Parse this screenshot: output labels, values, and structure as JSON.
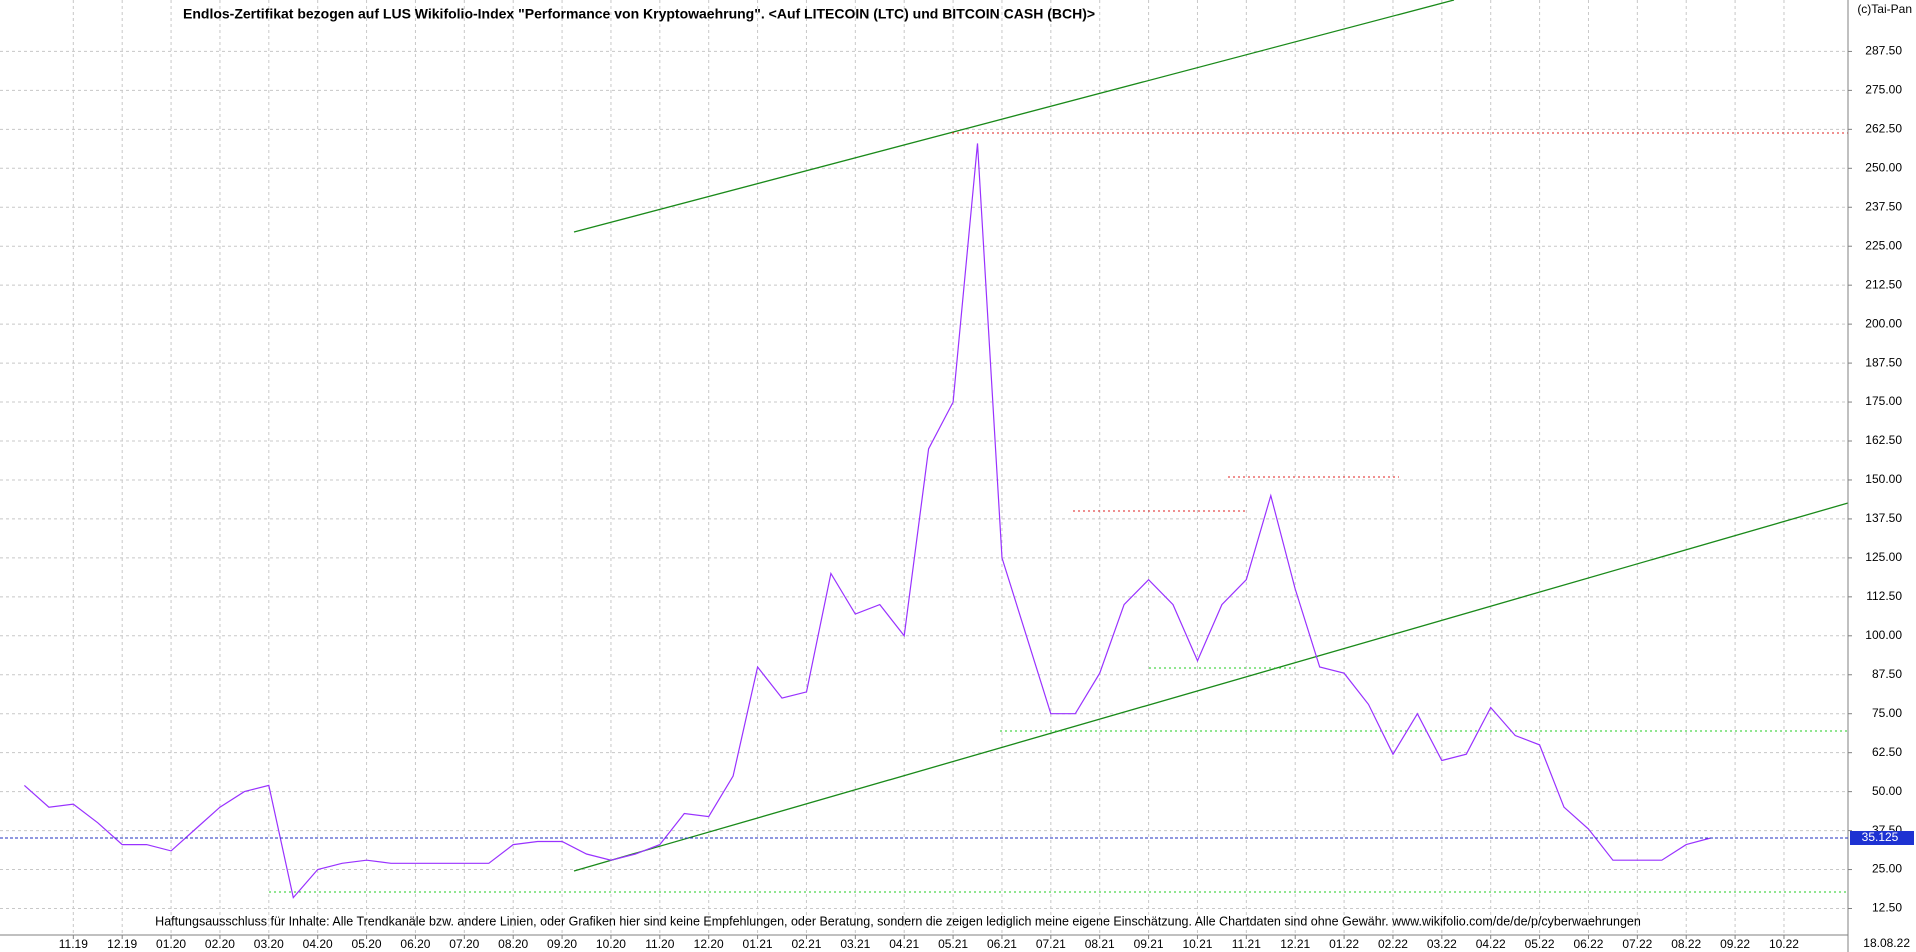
{
  "chart_data": {
    "type": "line",
    "title": "Endlos-Zertifikat bezogen auf LUS Wikifolio-Index \"Performance von Kryptowaehrung\". <Auf LITECOIN (LTC) und BITCOIN CASH (BCH)>",
    "copyright": "(c)Tai-Pan",
    "disclaimer": "Haftungsausschluss für Inhalte: Alle Trendkanäle bzw. andere Linien, oder Grafiken hier sind keine Empfehlungen, oder Beratung, sondern die zeigen lediglich meine eigene Einschätzung. Alle Chartdaten sind ohne Gewähr.  www.wikifolio.com/de/de/p/cyberwaehrungen",
    "date_label": "18.08.22",
    "categories": [
      null,
      null,
      "11.19",
      null,
      "12.19",
      null,
      "01.20",
      null,
      "02.20",
      null,
      "03.20",
      null,
      "04.20",
      null,
      "05.20",
      null,
      "06.20",
      null,
      "07.20",
      null,
      "08.20",
      null,
      "09.20",
      null,
      "10.20",
      null,
      "11.20",
      null,
      "12.20",
      null,
      "01.21",
      null,
      "02.21",
      null,
      "03.21",
      null,
      "04.21",
      null,
      "05.21",
      null,
      "06.21",
      null,
      "07.21",
      null,
      "08.21",
      null,
      "09.21",
      null,
      "10.21",
      null,
      "11.21",
      null,
      "12.21",
      null,
      "01.22",
      null,
      "02.22",
      null,
      "03.22",
      null,
      "04.22",
      null,
      "05.22",
      null,
      "06.22",
      null,
      "07.22",
      null,
      "08.22",
      null,
      "09.22",
      null,
      "10.22",
      null
    ],
    "values": [
      52,
      45,
      46,
      40,
      33,
      33,
      31,
      38,
      45,
      50,
      52,
      16,
      25,
      27,
      28,
      27,
      27,
      27,
      27,
      27,
      33,
      34,
      34,
      30,
      28,
      30,
      33,
      43,
      42,
      55,
      90,
      80,
      82,
      120,
      107,
      110,
      100,
      160,
      175,
      258,
      125,
      100,
      75,
      75,
      88,
      110,
      118,
      110,
      92,
      110,
      118,
      145,
      115,
      90,
      88,
      78,
      62,
      75,
      60,
      62,
      77,
      68,
      65,
      45,
      38,
      28,
      28,
      28,
      33,
      35.125,
      null,
      null,
      null,
      null
    ],
    "color": "#9932ff",
    "ylim": [
      4,
      304
    ],
    "yticks": [
      {
        "value": 12.5,
        "label": "12.50"
      },
      {
        "value": 25,
        "label": "25.00"
      },
      {
        "value": 37.5,
        "label": "37.50"
      },
      {
        "value": 50,
        "label": "50.00"
      },
      {
        "value": 62.5,
        "label": "62.50"
      },
      {
        "value": 75,
        "label": "75.00"
      },
      {
        "value": 87.5,
        "label": "87.50"
      },
      {
        "value": 100,
        "label": "100.00"
      },
      {
        "value": 112.5,
        "label": "112.50"
      },
      {
        "value": 125,
        "label": "125.00"
      },
      {
        "value": 137.5,
        "label": "137.50"
      },
      {
        "value": 150,
        "label": "150.00"
      },
      {
        "value": 162.5,
        "label": "162.50"
      },
      {
        "value": 175,
        "label": "175.00"
      },
      {
        "value": 187.5,
        "label": "187.50"
      },
      {
        "value": 200,
        "label": "200.00"
      },
      {
        "value": 212.5,
        "label": "212.50"
      },
      {
        "value": 225,
        "label": "225.00"
      },
      {
        "value": 237.5,
        "label": "237.50"
      },
      {
        "value": 250,
        "label": "250.00"
      },
      {
        "value": 262.5,
        "label": "262.50"
      },
      {
        "value": 275,
        "label": "275.00"
      },
      {
        "value": 287.5,
        "label": "287.50"
      }
    ],
    "grid": true
  }
}
